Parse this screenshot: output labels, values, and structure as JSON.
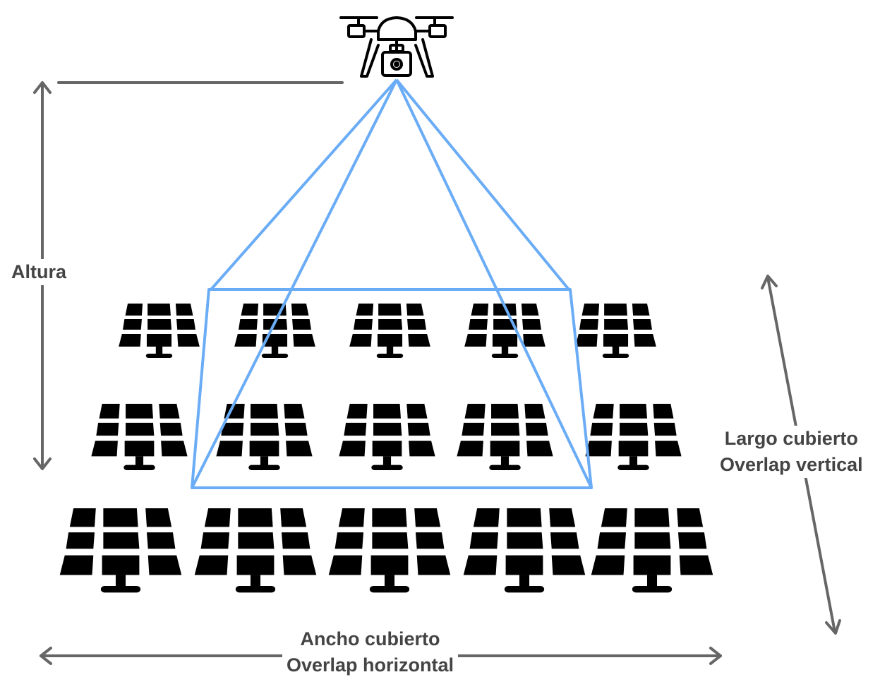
{
  "colors": {
    "dimension_arrows": "#666666",
    "camera_footprint": "#6aacf5",
    "icons": "#000000",
    "label_text": "#444444",
    "background": "#ffffff"
  },
  "icons": {
    "drone": "drone-with-camera-icon",
    "panel": "solar-panel-icon"
  },
  "labels": {
    "altura": "Altura",
    "largo_line1": "Largo cubierto",
    "largo_line2": "Overlap vertical",
    "ancho_line1": "Ancho cubierto",
    "ancho_line2": "Overlap horizontal"
  },
  "panel_grid": {
    "rows": 3,
    "panels_per_row": 5
  }
}
